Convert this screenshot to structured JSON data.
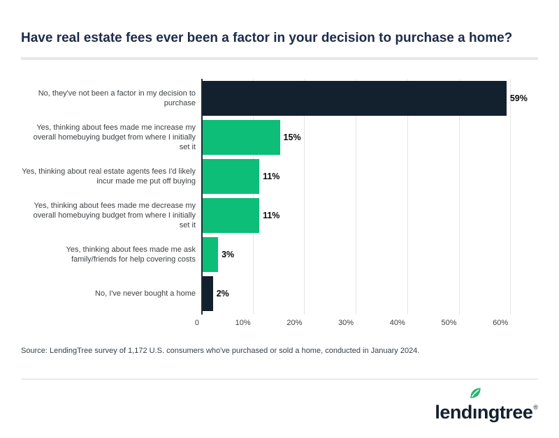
{
  "title": "Have real estate fees ever been a factor in your decision to purchase a home?",
  "chart_data": {
    "type": "bar",
    "orientation": "horizontal",
    "categories": [
      "No, they've not been a factor in my decision to purchase",
      "Yes, thinking about fees made me increase my overall homebuying budget from where I initially set it",
      "Yes, thinking about real estate agents fees I'd likely incur made me put off buying",
      "Yes, thinking about fees made me decrease my overall homebuying budget from where I initially set it",
      "Yes, thinking about fees made me ask family/friends for help covering costs",
      "No, I've never bought a home"
    ],
    "values": [
      59,
      15,
      11,
      11,
      3,
      2
    ],
    "value_labels": [
      "59%",
      "15%",
      "11%",
      "11%",
      "3%",
      "2%"
    ],
    "bar_colors": [
      "#13202E",
      "#0CBE77",
      "#0CBE77",
      "#0CBE77",
      "#0CBE77",
      "#13202E"
    ],
    "xlabel": "",
    "ylabel": "",
    "xlim": [
      0,
      65
    ],
    "x_ticks": [
      {
        "value": 0,
        "label": "0"
      },
      {
        "value": 10,
        "label": "10%"
      },
      {
        "value": 20,
        "label": "20%"
      },
      {
        "value": 30,
        "label": "30%"
      },
      {
        "value": 40,
        "label": "40%"
      },
      {
        "value": 50,
        "label": "50%"
      },
      {
        "value": 60,
        "label": "60%"
      }
    ],
    "grid": "vertical gridlines on",
    "legend": "none"
  },
  "source": "Source: LendingTree survey of 1,172 U.S. consumers who've purchased or sold a home, conducted in January 2024.",
  "branding": {
    "logo_text": "lendingtree",
    "registered_mark": "®",
    "leaf_icon": "leaf-icon",
    "logo_color": "#13202E",
    "leaf_color": "#29B573"
  },
  "colors": {
    "bar_navy": "#13202E",
    "bar_green": "#0CBE77",
    "title_navy": "#1B2B49",
    "axis_line": "#232B36",
    "gridline": "#E6E6E6",
    "label_gray": "#3C4043",
    "value_black": "#0A0A0A"
  }
}
